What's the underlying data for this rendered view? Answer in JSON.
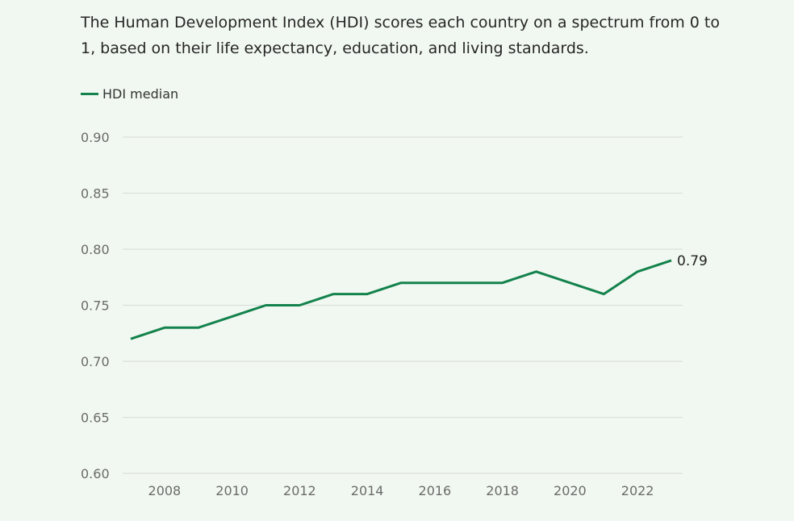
{
  "description": "The Human Development Index (HDI) scores each country on a spectrum from 0 to 1, based on their life expectancy, education, and living standards.",
  "colors": {
    "line": "#13824c",
    "background": "#f1f8f1",
    "grid": "#dcdfdc"
  },
  "chart_data": {
    "type": "line",
    "title": "",
    "xlabel": "",
    "ylabel": "",
    "legend": {
      "placement": "top-left",
      "entries": [
        "HDI median"
      ]
    },
    "grid": {
      "horizontal": true,
      "vertical": false
    },
    "xlim": [
      2007,
      2023
    ],
    "ylim": [
      0.6,
      0.9
    ],
    "x_ticks": [
      2008,
      2010,
      2012,
      2014,
      2016,
      2018,
      2020,
      2022
    ],
    "y_ticks": [
      "0.60",
      "0.65",
      "0.70",
      "0.75",
      "0.80",
      "0.85",
      "0.90"
    ],
    "x": [
      2007,
      2008,
      2009,
      2010,
      2011,
      2012,
      2013,
      2014,
      2015,
      2016,
      2017,
      2018,
      2019,
      2020,
      2021,
      2022,
      2023
    ],
    "series": [
      {
        "name": "HDI median",
        "values": [
          0.72,
          0.73,
          0.73,
          0.74,
          0.75,
          0.75,
          0.76,
          0.76,
          0.77,
          0.77,
          0.77,
          0.77,
          0.78,
          0.77,
          0.76,
          0.78,
          0.79
        ],
        "end_label": "0.79"
      }
    ]
  }
}
